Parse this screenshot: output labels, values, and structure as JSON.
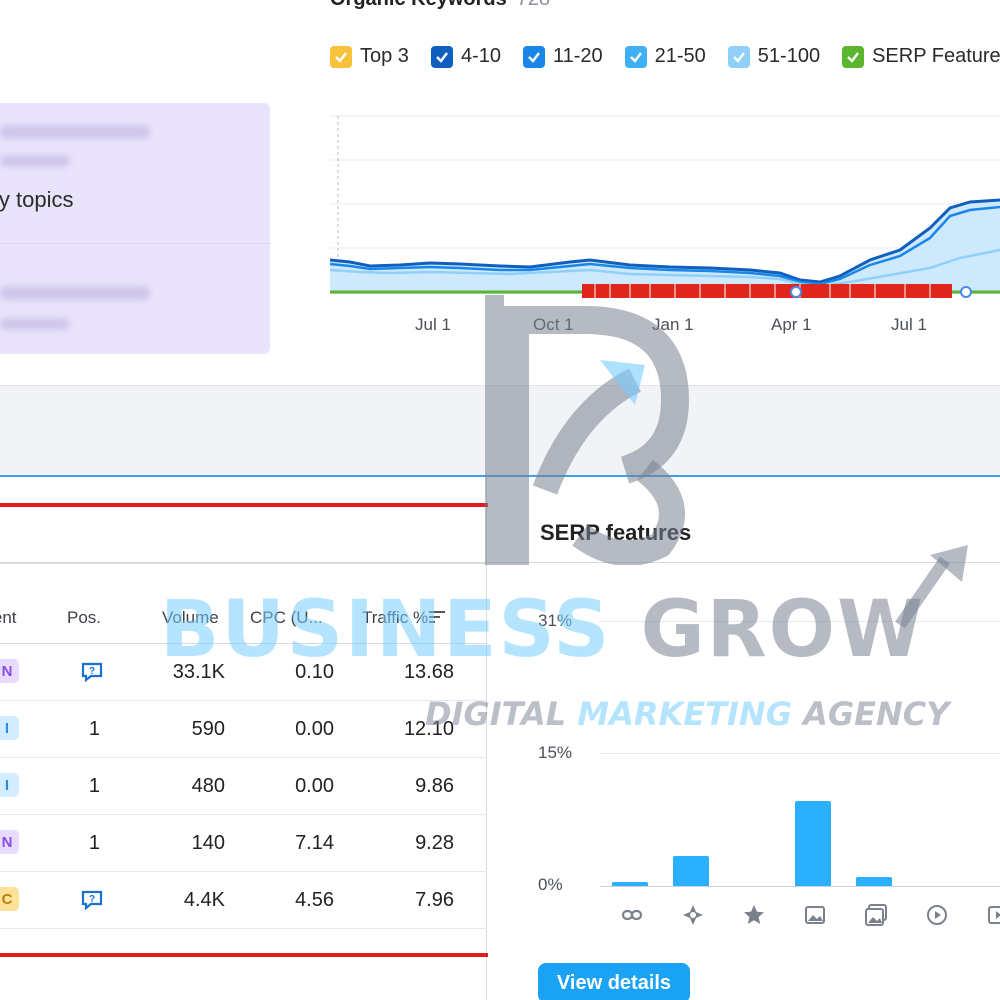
{
  "organic": {
    "title": "Organic Keywords",
    "count": "728"
  },
  "legend": [
    {
      "label": "Top 3",
      "color": "#f8c23a"
    },
    {
      "label": "4-10",
      "color": "#0f5fbf"
    },
    {
      "label": "11-20",
      "color": "#1a86e8"
    },
    {
      "label": "21-50",
      "color": "#3fb0f5"
    },
    {
      "label": "51-100",
      "color": "#8fd0fb"
    },
    {
      "label": "SERP Features",
      "color": "#5ab52f"
    }
  ],
  "topics": {
    "text": "Key topics"
  },
  "chart": {
    "months": [
      "Jul 1",
      "Oct 1",
      "Jan 1",
      "Apr 1",
      "Jul 1"
    ]
  },
  "table": {
    "headers": {
      "intent": "Intent",
      "pos": "Pos.",
      "volume": "Volume",
      "cpc": "CPC (U...",
      "traffic": "Traffic %"
    },
    "rows": [
      {
        "intent": "N",
        "pos": "",
        "pos_icon": "serp-feature-icon",
        "volume": "33.1K",
        "cpc": "0.10",
        "traffic": "13.68"
      },
      {
        "intent": "I",
        "pos": "1",
        "volume": "590",
        "cpc": "0.00",
        "traffic": "12.10"
      },
      {
        "intent": "I",
        "pos": "1",
        "volume": "480",
        "cpc": "0.00",
        "traffic": "9.86"
      },
      {
        "intent": "N",
        "pos": "1",
        "volume": "140",
        "cpc": "7.14",
        "traffic": "9.28"
      },
      {
        "intent": "C",
        "pos": "",
        "pos_icon": "serp-feature-icon",
        "volume": "4.4K",
        "cpc": "4.56",
        "traffic": "7.96"
      }
    ]
  },
  "serp": {
    "title": "SERP features",
    "yticks": [
      "31%",
      "15%",
      "0%"
    ],
    "icons": [
      "link-icon",
      "featured-snippet-icon",
      "star-icon",
      "image-icon",
      "image-pack-icon",
      "video-icon",
      "video-carousel-icon"
    ],
    "button": "View details"
  },
  "chart_data": {
    "type": "bar",
    "categories": [
      "link-icon",
      "featured-snippet-icon",
      "star-icon",
      "image-icon",
      "image-pack-icon",
      "video-icon",
      "video-carousel-icon"
    ],
    "values": [
      0.5,
      3.5,
      0,
      10,
      1,
      0,
      0
    ],
    "title": "SERP features",
    "xlabel": "",
    "ylabel": "",
    "ylim": [
      0,
      31
    ]
  },
  "watermark": {
    "line1a": "BUSINESS",
    "line1b": "GROW",
    "line2a": "DIGITAL",
    "line2b": "MARKETING",
    "line2c": "AGENCY"
  }
}
